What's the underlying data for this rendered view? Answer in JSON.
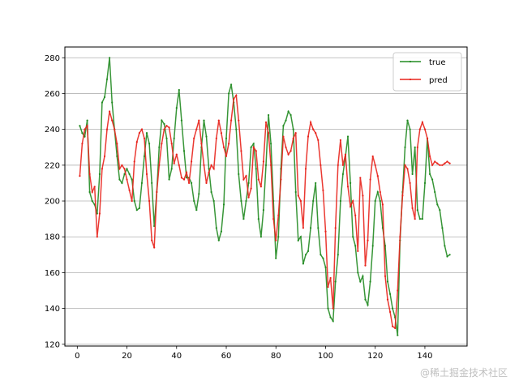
{
  "watermark": "@稀土掘金技术社区",
  "chart_data": {
    "type": "line",
    "title": "",
    "xlabel": "",
    "ylabel": "",
    "xlim": [
      -5,
      157
    ],
    "ylim": [
      119,
      286
    ],
    "xticks": [
      0,
      20,
      40,
      60,
      80,
      100,
      120,
      140
    ],
    "yticks": [
      120,
      140,
      160,
      180,
      200,
      220,
      240,
      260,
      280
    ],
    "grid": "y",
    "legend_position": "top-right",
    "series": [
      {
        "name": "true",
        "color": "#228b22",
        "x": [
          1,
          2,
          3,
          4,
          5,
          6,
          7,
          8,
          9,
          10,
          11,
          12,
          13,
          14,
          15,
          16,
          17,
          18,
          19,
          20,
          21,
          22,
          23,
          24,
          25,
          26,
          27,
          28,
          29,
          30,
          31,
          32,
          33,
          34,
          35,
          36,
          37,
          38,
          39,
          40,
          41,
          42,
          43,
          44,
          45,
          46,
          47,
          48,
          49,
          50,
          51,
          52,
          53,
          54,
          55,
          56,
          57,
          58,
          59,
          60,
          61,
          62,
          63,
          64,
          65,
          66,
          67,
          68,
          69,
          70,
          71,
          72,
          73,
          74,
          75,
          76,
          77,
          78,
          79,
          80,
          81,
          82,
          83,
          84,
          85,
          86,
          87,
          88,
          89,
          90,
          91,
          92,
          93,
          94,
          95,
          96,
          97,
          98,
          99,
          100,
          101,
          102,
          103,
          104,
          105,
          106,
          107,
          108,
          109,
          110,
          111,
          112,
          113,
          114,
          115,
          116,
          117,
          118,
          119,
          120,
          121,
          122,
          123,
          124,
          125,
          126,
          127,
          128,
          129,
          130,
          131,
          132,
          133,
          134,
          135,
          136,
          137,
          138,
          139,
          140,
          141,
          142,
          143,
          144,
          145,
          146,
          147,
          148,
          149,
          150
        ],
        "values": [
          242,
          238,
          236,
          245,
          205,
          200,
          198,
          193,
          215,
          255,
          258,
          268,
          280,
          255,
          240,
          225,
          212,
          210,
          215,
          218,
          215,
          212,
          200,
          195,
          196,
          210,
          225,
          238,
          232,
          210,
          186,
          205,
          230,
          245,
          243,
          235,
          212,
          218,
          235,
          252,
          262,
          245,
          228,
          213,
          213,
          210,
          200,
          195,
          204,
          230,
          245,
          236,
          218,
          205,
          200,
          185,
          178,
          183,
          198,
          235,
          260,
          265,
          255,
          240,
          215,
          200,
          190,
          200,
          210,
          230,
          232,
          218,
          190,
          180,
          195,
          220,
          248,
          232,
          200,
          168,
          180,
          218,
          242,
          245,
          250,
          248,
          240,
          205,
          178,
          180,
          165,
          170,
          172,
          185,
          200,
          210,
          185,
          170,
          168,
          163,
          140,
          135,
          133,
          155,
          170,
          200,
          215,
          225,
          236,
          210,
          180,
          175,
          160,
          155,
          158,
          145,
          142,
          155,
          175,
          200,
          205,
          200,
          185,
          175,
          155,
          148,
          140,
          135,
          125,
          178,
          205,
          230,
          245,
          240,
          215,
          230,
          195,
          190,
          190,
          210,
          235,
          215,
          212,
          205,
          198,
          195,
          185,
          175,
          169,
          170
        ]
      },
      {
        "name": "pred",
        "color": "#e8231c",
        "x": [
          1,
          2,
          3,
          4,
          5,
          6,
          7,
          8,
          9,
          10,
          11,
          12,
          13,
          14,
          15,
          16,
          17,
          18,
          19,
          20,
          21,
          22,
          23,
          24,
          25,
          26,
          27,
          28,
          29,
          30,
          31,
          32,
          33,
          34,
          35,
          36,
          37,
          38,
          39,
          40,
          41,
          42,
          43,
          44,
          45,
          46,
          47,
          48,
          49,
          50,
          51,
          52,
          53,
          54,
          55,
          56,
          57,
          58,
          59,
          60,
          61,
          62,
          63,
          64,
          65,
          66,
          67,
          68,
          69,
          70,
          71,
          72,
          73,
          74,
          75,
          76,
          77,
          78,
          79,
          80,
          81,
          82,
          83,
          84,
          85,
          86,
          87,
          88,
          89,
          90,
          91,
          92,
          93,
          94,
          95,
          96,
          97,
          98,
          99,
          100,
          101,
          102,
          103,
          104,
          105,
          106,
          107,
          108,
          109,
          110,
          111,
          112,
          113,
          114,
          115,
          116,
          117,
          118,
          119,
          120,
          121,
          122,
          123,
          124,
          125,
          126,
          127,
          128,
          129,
          130,
          131,
          132,
          133,
          134,
          135,
          136,
          137,
          138,
          139,
          140,
          141,
          142,
          143,
          144,
          145,
          146,
          147,
          148,
          149,
          150
        ],
        "values": [
          214,
          232,
          240,
          242,
          215,
          205,
          208,
          180,
          193,
          218,
          225,
          240,
          250,
          245,
          240,
          232,
          218,
          220,
          218,
          212,
          206,
          200,
          222,
          233,
          238,
          240,
          235,
          215,
          200,
          178,
          174,
          205,
          220,
          232,
          240,
          242,
          241,
          232,
          221,
          226,
          220,
          213,
          212,
          216,
          210,
          222,
          235,
          240,
          245,
          232,
          220,
          210,
          216,
          220,
          218,
          235,
          245,
          238,
          230,
          225,
          232,
          245,
          257,
          259,
          245,
          228,
          212,
          214,
          202,
          207,
          230,
          228,
          212,
          208,
          222,
          244,
          238,
          220,
          190,
          178,
          192,
          212,
          236,
          230,
          226,
          228,
          235,
          238,
          203,
          200,
          185,
          218,
          236,
          244,
          240,
          238,
          234,
          220,
          206,
          183,
          152,
          157,
          140,
          185,
          220,
          234,
          220,
          226,
          208,
          197,
          200,
          192,
          172,
          213,
          203,
          164,
          178,
          212,
          225,
          220,
          214,
          205,
          198,
          158,
          145,
          138,
          130,
          129,
          150,
          180,
          203,
          220,
          218,
          210,
          196,
          190,
          230,
          240,
          244,
          240,
          235,
          225,
          220,
          222,
          221,
          220,
          220,
          221,
          222,
          221
        ]
      }
    ]
  }
}
